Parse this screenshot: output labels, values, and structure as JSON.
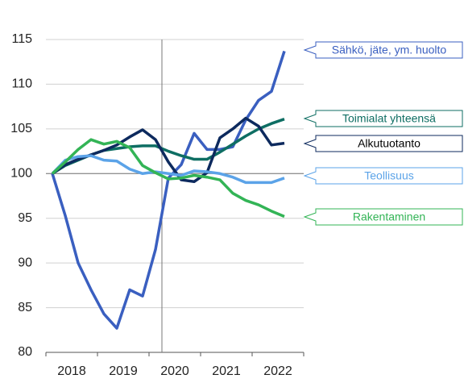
{
  "chart_data": {
    "type": "line",
    "x": [
      2018.125,
      2018.375,
      2018.625,
      2018.875,
      2019.125,
      2019.375,
      2019.625,
      2019.875,
      2020.125,
      2020.375,
      2020.625,
      2020.875,
      2021.125,
      2021.375,
      2021.625,
      2021.875,
      2022.125,
      2022.375,
      2022.625
    ],
    "xlim": [
      2018,
      2023
    ],
    "xticks": [
      2018,
      2019,
      2020,
      2021,
      2022
    ],
    "ylim": [
      80,
      115
    ],
    "yticks": [
      80,
      85,
      90,
      95,
      100,
      105,
      110,
      115
    ],
    "grid": true,
    "reference_line": 100,
    "vline": 2020.25,
    "series": [
      {
        "name": "Sähkö, jäte, ym. huolto",
        "color": "#3a5fc0",
        "values": [
          100,
          95.3,
          90,
          87,
          84.3,
          82.7,
          87,
          86.3,
          91.5,
          99.5,
          101,
          104.5,
          102.7,
          102.7,
          103,
          106,
          108.2,
          109.2,
          113.7
        ]
      },
      {
        "name": "Toimialat yhteensä",
        "color": "#0e6e63",
        "values": [
          100,
          100.9,
          101.5,
          102.1,
          102.6,
          102.8,
          103,
          103.1,
          103.1,
          102.5,
          102,
          101.6,
          101.6,
          102.4,
          103.3,
          104.2,
          105,
          105.6,
          106.1
        ]
      },
      {
        "name": "Alkutuotanto",
        "color": "#0d2a5e",
        "values": [
          100,
          101,
          101.6,
          102.1,
          102.6,
          103.2,
          104.1,
          104.9,
          103.8,
          101.3,
          99.3,
          99.1,
          100.1,
          104,
          105,
          106.2,
          105.3,
          103.2,
          103.4
        ]
      },
      {
        "name": "Teollisuus",
        "color": "#5ba3e8",
        "values": [
          100,
          101.5,
          101.9,
          102,
          101.5,
          101.4,
          100.5,
          100,
          100.2,
          100,
          99.8,
          100.3,
          100.2,
          100,
          99.6,
          99,
          99,
          99,
          99.5
        ]
      },
      {
        "name": "Rakentaminen",
        "color": "#33b456",
        "values": [
          100,
          101.3,
          102.7,
          103.8,
          103.3,
          103.6,
          102.9,
          100.9,
          100.1,
          99.4,
          99.5,
          99.8,
          99.6,
          99.3,
          97.8,
          97,
          96.5,
          95.8,
          95.2
        ]
      }
    ]
  }
}
